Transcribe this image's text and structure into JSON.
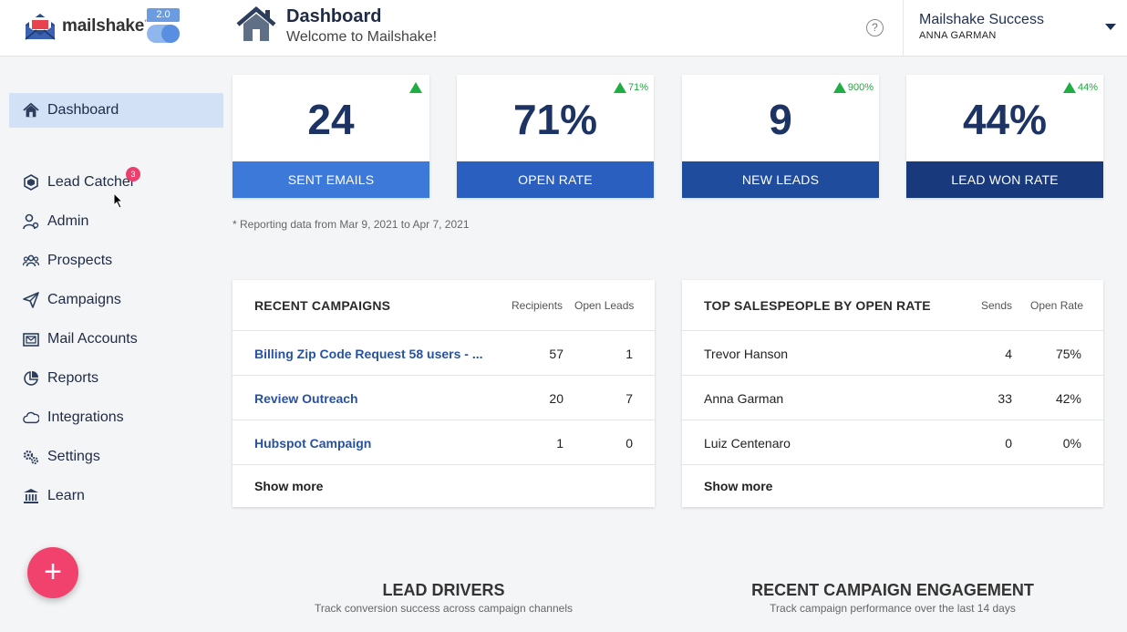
{
  "app": {
    "name": "mailshake",
    "tm": "™",
    "version": "2.0"
  },
  "header": {
    "title": "Dashboard",
    "subtitle": "Welcome to Mailshake!",
    "help_glyph": "?",
    "account_name": "Mailshake Success",
    "account_user": "ANNA GARMAN"
  },
  "sidebar": {
    "items": [
      {
        "label": "Dashboard",
        "icon": "home-icon",
        "active": true
      },
      {
        "label": "Lead Catcher",
        "icon": "lead-catcher-icon",
        "badge": "3"
      },
      {
        "label": "Admin",
        "icon": "admin-user-icon"
      },
      {
        "label": "Prospects",
        "icon": "prospects-group-icon"
      },
      {
        "label": "Campaigns",
        "icon": "paper-plane-icon"
      },
      {
        "label": "Mail Accounts",
        "icon": "mail-accounts-icon"
      },
      {
        "label": "Reports",
        "icon": "pie-chart-icon"
      },
      {
        "label": "Integrations",
        "icon": "cloud-icon"
      },
      {
        "label": "Settings",
        "icon": "gears-icon"
      },
      {
        "label": "Learn",
        "icon": "institution-icon"
      }
    ],
    "fab_label": "+"
  },
  "stats": [
    {
      "value": "24",
      "label": "SENT EMAILS",
      "trend": "",
      "color": "#3d79d8"
    },
    {
      "value": "71%",
      "label": "OPEN RATE",
      "trend": "71%",
      "color": "#2a5fbf"
    },
    {
      "value": "9",
      "label": "NEW LEADS",
      "trend": "900%",
      "color": "#1f4c9c"
    },
    {
      "value": "44%",
      "label": "LEAD WON RATE",
      "trend": "44%",
      "color": "#183a7c"
    }
  ],
  "report_note": "* Reporting data from Mar 9, 2021 to Apr 7, 2021",
  "recent_campaigns": {
    "title": "RECENT CAMPAIGNS",
    "columns": [
      "Recipients",
      "Open Leads"
    ],
    "rows": [
      {
        "name": "Billing Zip Code Request 58 users - ...",
        "recipients": "57",
        "open_leads": "1"
      },
      {
        "name": "Review Outreach",
        "recipients": "20",
        "open_leads": "7"
      },
      {
        "name": "Hubspot Campaign",
        "recipients": "1",
        "open_leads": "0"
      }
    ],
    "show_more": "Show more"
  },
  "top_salespeople": {
    "title": "TOP SALESPEOPLE BY OPEN RATE",
    "columns": [
      "Sends",
      "Open Rate"
    ],
    "rows": [
      {
        "name": "Trevor Hanson",
        "sends": "4",
        "open_rate": "75%"
      },
      {
        "name": "Anna Garman",
        "sends": "33",
        "open_rate": "42%"
      },
      {
        "name": "Luiz Centenaro",
        "sends": "0",
        "open_rate": "0%"
      }
    ],
    "show_more": "Show more"
  },
  "lead_drivers": {
    "title": "LEAD DRIVERS",
    "subtitle": "Track conversion success across campaign channels"
  },
  "engagement": {
    "title": "RECENT CAMPAIGN ENGAGEMENT",
    "subtitle": "Track campaign performance over the last 14 days"
  }
}
